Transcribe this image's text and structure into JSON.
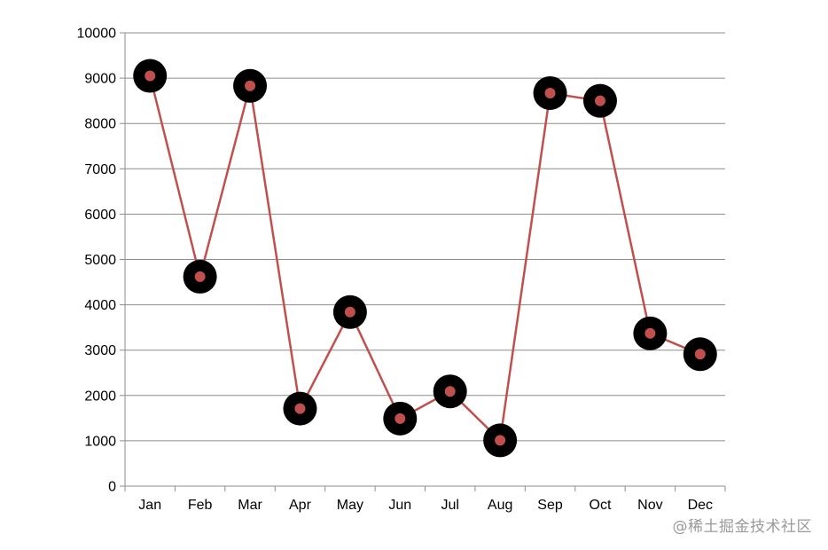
{
  "chart_data": {
    "type": "line",
    "categories": [
      "Jan",
      "Feb",
      "Mar",
      "Apr",
      "May",
      "Jun",
      "Jul",
      "Aug",
      "Sep",
      "Oct",
      "Nov",
      "Dec"
    ],
    "series": [
      {
        "values": [
          9050,
          4620,
          8830,
          1710,
          3840,
          1490,
          2090,
          1010,
          8670,
          8500,
          3370,
          2910
        ],
        "color": "#c0504d"
      }
    ],
    "y_ticks": [
      "0",
      "1000",
      "2000",
      "3000",
      "4000",
      "5000",
      "6000",
      "7000",
      "8000",
      "9000",
      "10000"
    ],
    "ylim": [
      0,
      10000
    ],
    "grid": true,
    "legend": "none",
    "marker_outer_color": "#000000",
    "marker_inner_color": "#c0504d",
    "gridline_color": "#8c8c8c",
    "axis_color": "#8c8c8c"
  },
  "watermark": {
    "text": "@稀土掘金技术社区"
  }
}
